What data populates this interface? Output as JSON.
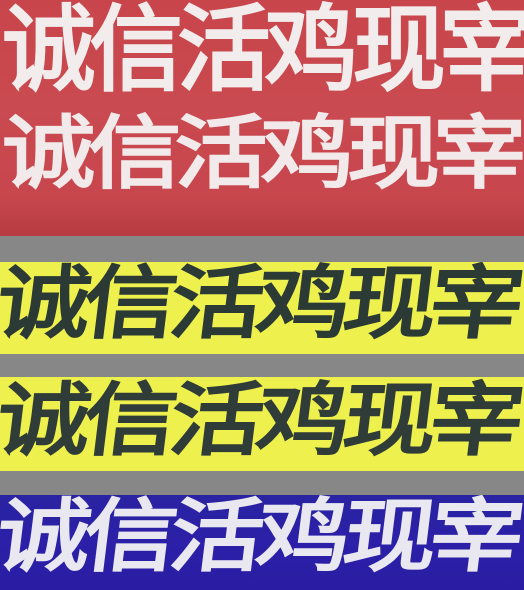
{
  "photo": {
    "subject": "shop-sign-strips",
    "colors": {
      "red_sign": "#c9474e",
      "yellow_sign": "#eef04e",
      "blue_sign": "#2b1fa8",
      "separator": "#878787",
      "light_text": "#f2ecec",
      "dark_text": "#2b3a35"
    }
  },
  "signs": [
    {
      "text": "诚信活鸡现宰"
    },
    {
      "text": "诚信活鸡现宰"
    },
    {
      "text": "诚信活鸡现宰"
    },
    {
      "text": "诚信活鸡现宰"
    },
    {
      "text": "诚信活鸡现宰"
    }
  ]
}
